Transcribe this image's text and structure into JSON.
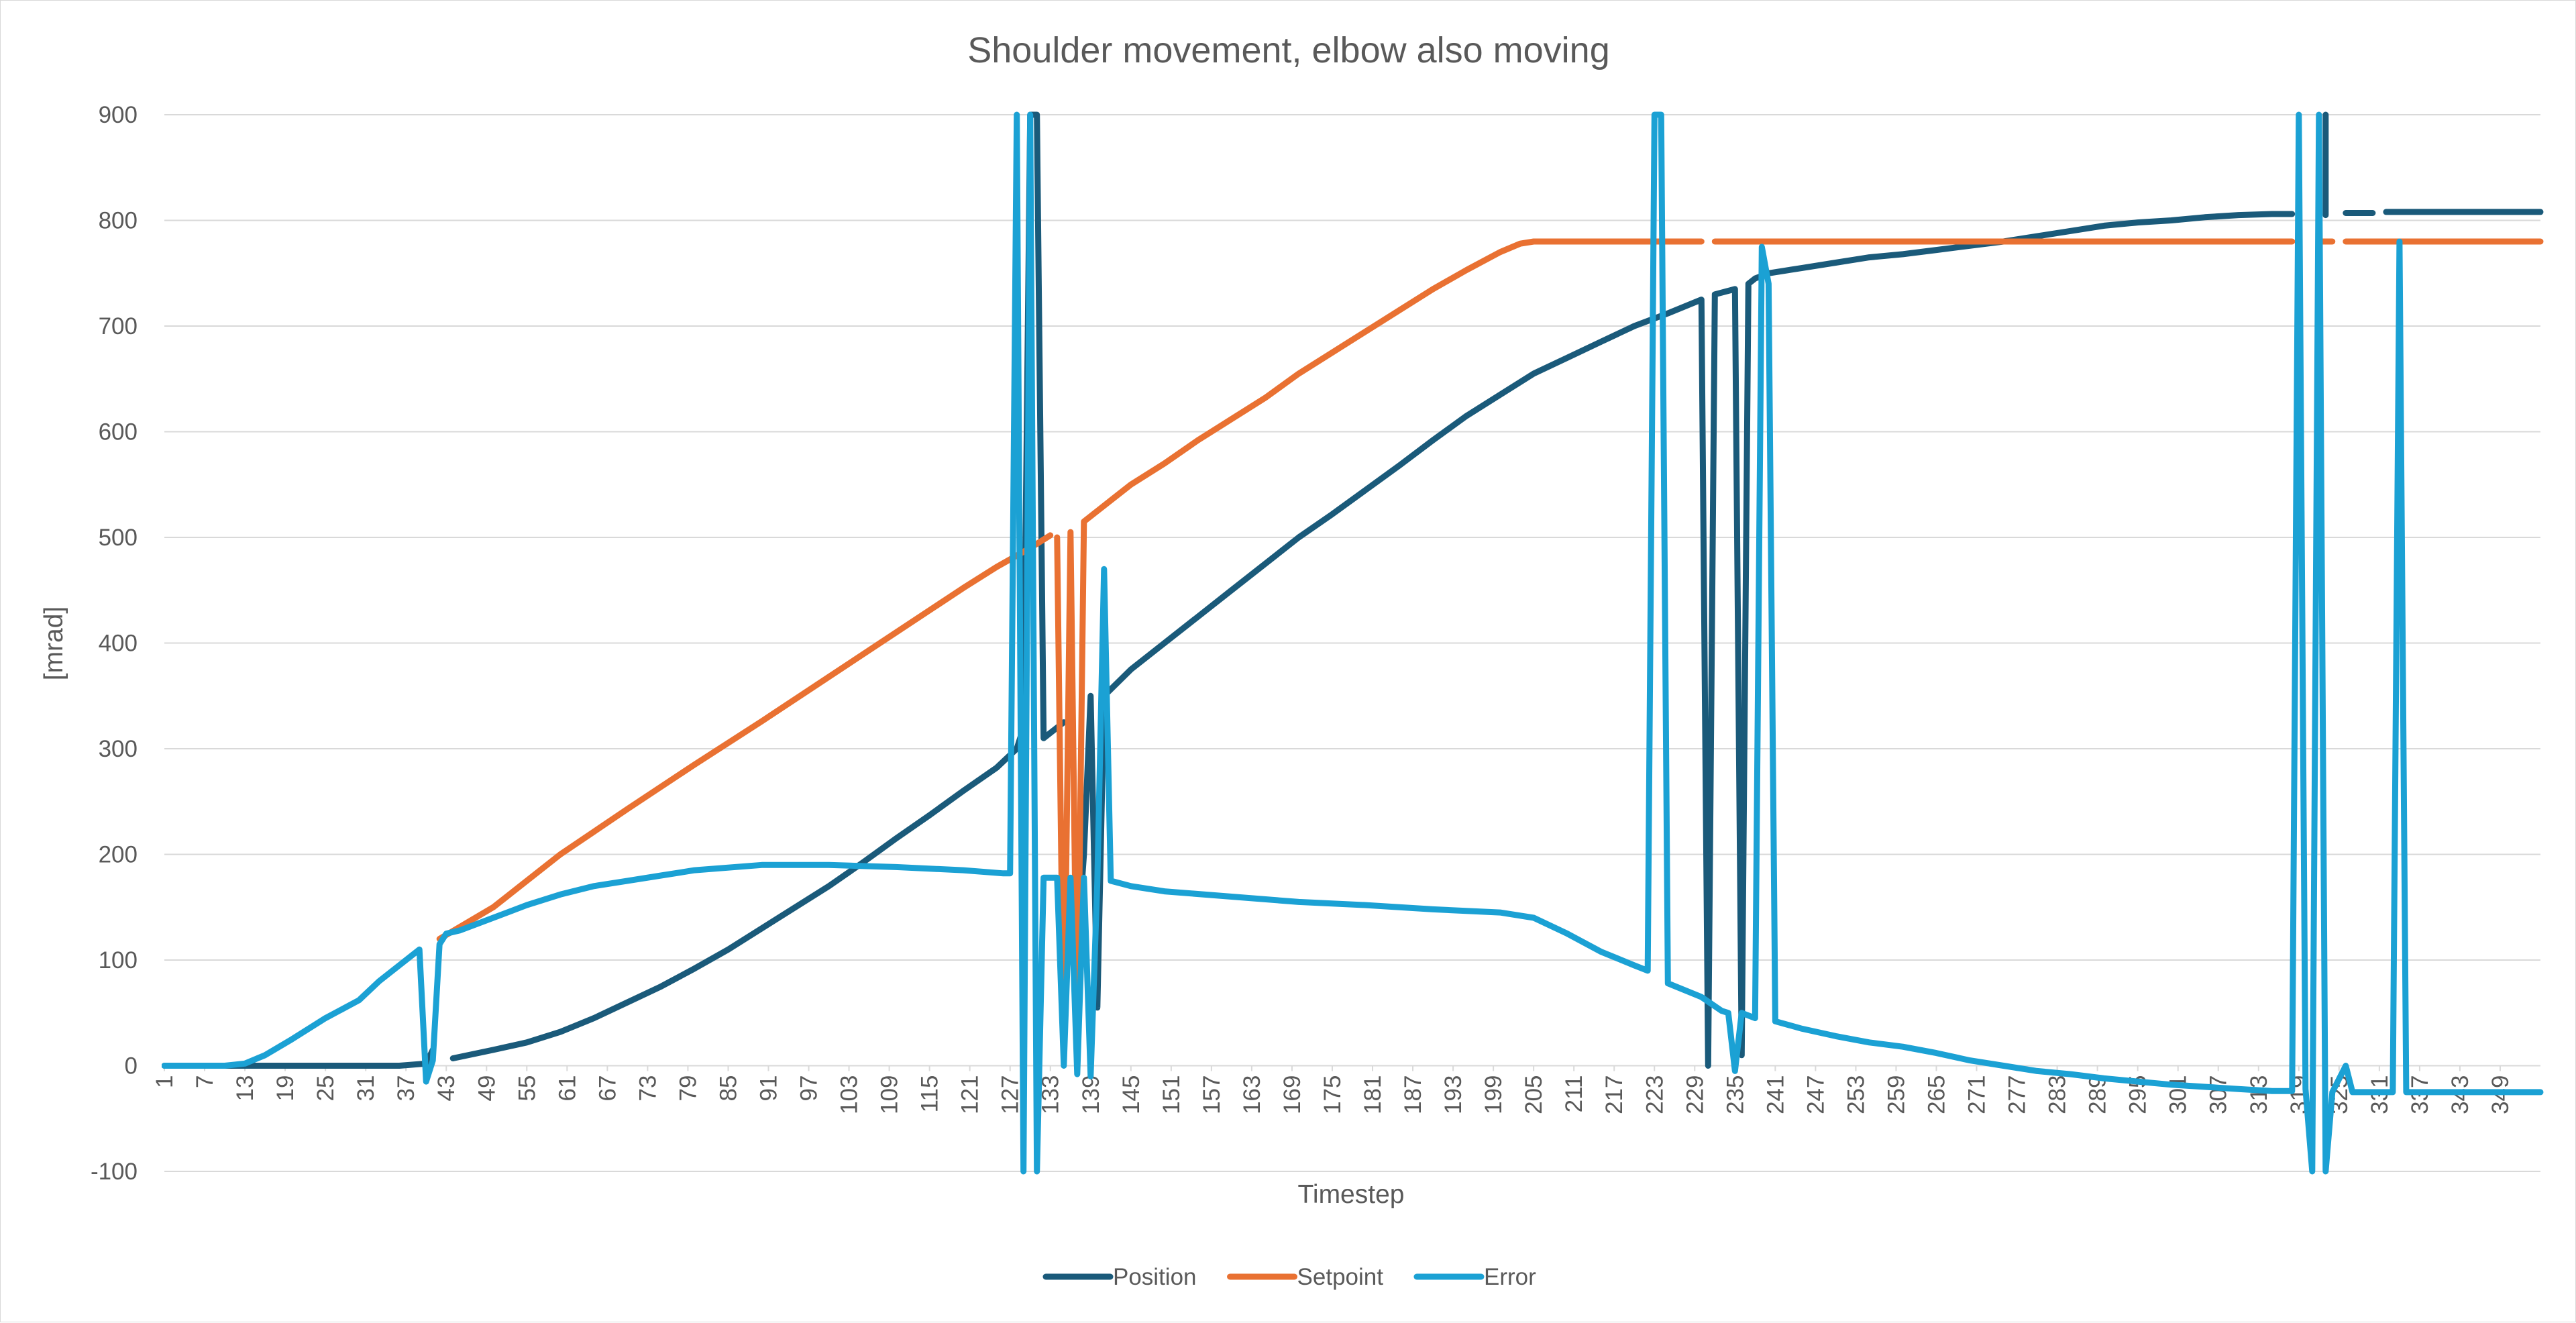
{
  "chart_data": {
    "type": "line",
    "title": "Shoulder movement, elbow also moving",
    "xlabel": "Timestep",
    "ylabel": "[mrad]",
    "ylim": [
      -100,
      900
    ],
    "yticks": [
      -100,
      0,
      100,
      200,
      300,
      400,
      500,
      600,
      700,
      800,
      900
    ],
    "x_range": [
      1,
      355
    ],
    "xticks": [
      1,
      7,
      13,
      19,
      25,
      31,
      37,
      43,
      49,
      55,
      61,
      67,
      73,
      79,
      85,
      91,
      97,
      103,
      109,
      115,
      121,
      127,
      133,
      139,
      145,
      151,
      157,
      163,
      169,
      175,
      181,
      187,
      193,
      199,
      205,
      211,
      217,
      223,
      229,
      235,
      241,
      247,
      253,
      259,
      265,
      271,
      277,
      283,
      289,
      295,
      301,
      307,
      313,
      319,
      325,
      331,
      337,
      343,
      349
    ],
    "grid": true,
    "legend_position": "bottom",
    "series": [
      {
        "name": "Position",
        "color": "#1a5a7a",
        "segments": [
          [
            [
              1,
              0
            ],
            [
              10,
              0
            ],
            [
              20,
              0
            ],
            [
              30,
              0
            ],
            [
              36,
              0
            ],
            [
              40,
              2
            ],
            [
              41,
              15
            ]
          ],
          [
            [
              44,
              7
            ],
            [
              50,
              15
            ],
            [
              55,
              22
            ],
            [
              60,
              32
            ],
            [
              65,
              45
            ],
            [
              70,
              60
            ],
            [
              75,
              75
            ],
            [
              80,
              92
            ],
            [
              85,
              110
            ],
            [
              90,
              130
            ],
            [
              95,
              150
            ],
            [
              100,
              170
            ],
            [
              105,
              192
            ],
            [
              110,
              215
            ],
            [
              115,
              237
            ],
            [
              120,
              260
            ],
            [
              125,
              282
            ],
            [
              128,
              300
            ],
            [
              129,
              320
            ],
            [
              130,
              900
            ],
            [
              131,
              900
            ],
            [
              132,
              310
            ],
            [
              135,
              325
            ]
          ],
          [
            [
              137,
              110
            ],
            [
              138,
              200
            ],
            [
              139,
              350
            ],
            [
              140,
              55
            ],
            [
              141,
              350
            ],
            [
              145,
              375
            ],
            [
              150,
              400
            ],
            [
              155,
              425
            ],
            [
              160,
              450
            ],
            [
              165,
              475
            ],
            [
              170,
              500
            ],
            [
              175,
              522
            ],
            [
              180,
              545
            ],
            [
              185,
              568
            ],
            [
              190,
              592
            ],
            [
              195,
              615
            ],
            [
              200,
              635
            ],
            [
              205,
              655
            ],
            [
              210,
              670
            ],
            [
              215,
              685
            ],
            [
              220,
              700
            ],
            [
              225,
              712
            ],
            [
              230,
              725
            ],
            [
              231,
              0
            ],
            [
              232,
              730
            ],
            [
              235,
              735
            ],
            [
              236,
              10
            ],
            [
              237,
              740
            ],
            [
              238,
              745
            ],
            [
              240,
              750
            ],
            [
              245,
              755
            ],
            [
              250,
              760
            ],
            [
              255,
              765
            ],
            [
              260,
              768
            ],
            [
              265,
              772
            ],
            [
              270,
              776
            ],
            [
              275,
              780
            ],
            [
              280,
              785
            ],
            [
              285,
              790
            ],
            [
              290,
              795
            ],
            [
              295,
              798
            ],
            [
              300,
              800
            ],
            [
              305,
              803
            ],
            [
              310,
              805
            ],
            [
              315,
              806
            ],
            [
              318,
              806
            ]
          ],
          [
            [
              323,
              900
            ],
            [
              323,
              805
            ]
          ],
          [
            [
              326,
              807
            ],
            [
              330,
              807
            ]
          ],
          [
            [
              332,
              808
            ],
            [
              340,
              808
            ],
            [
              349,
              808
            ],
            [
              355,
              808
            ]
          ]
        ]
      },
      {
        "name": "Setpoint",
        "color": "#e97132",
        "segments": [
          [
            [
              42,
              120
            ],
            [
              50,
              150
            ],
            [
              60,
              200
            ],
            [
              70,
              243
            ],
            [
              80,
              285
            ],
            [
              90,
              326
            ],
            [
              100,
              368
            ],
            [
              110,
              410
            ],
            [
              120,
              452
            ],
            [
              125,
              472
            ],
            [
              130,
              490
            ],
            [
              133,
              502
            ]
          ],
          [
            [
              134,
              500
            ],
            [
              135,
              10
            ],
            [
              136,
              505
            ],
            [
              137,
              12
            ],
            [
              138,
              515
            ],
            [
              139,
              520
            ],
            [
              140,
              525
            ],
            [
              145,
              550
            ],
            [
              150,
              570
            ],
            [
              155,
              592
            ],
            [
              160,
              612
            ],
            [
              165,
              632
            ],
            [
              170,
              655
            ],
            [
              175,
              675
            ],
            [
              180,
              695
            ],
            [
              185,
              715
            ],
            [
              190,
              735
            ],
            [
              195,
              753
            ],
            [
              200,
              770
            ],
            [
              203,
              778
            ],
            [
              205,
              780
            ],
            [
              210,
              780
            ],
            [
              220,
              780
            ],
            [
              230,
              780
            ]
          ],
          [
            [
              232,
              780
            ],
            [
              240,
              780
            ],
            [
              260,
              780
            ],
            [
              280,
              780
            ],
            [
              300,
              780
            ],
            [
              318,
              780
            ]
          ],
          [
            [
              322,
              780
            ],
            [
              324,
              780
            ]
          ],
          [
            [
              326,
              780
            ],
            [
              340,
              780
            ],
            [
              355,
              780
            ]
          ]
        ]
      },
      {
        "name": "Error",
        "color": "#1ba1d4",
        "segments": [
          [
            [
              1,
              0
            ],
            [
              10,
              0
            ],
            [
              13,
              2
            ],
            [
              16,
              10
            ],
            [
              20,
              25
            ],
            [
              25,
              45
            ],
            [
              30,
              62
            ],
            [
              33,
              80
            ],
            [
              36,
              95
            ],
            [
              38,
              105
            ],
            [
              39,
              110
            ],
            [
              40,
              -15
            ],
            [
              41,
              5
            ],
            [
              42,
              115
            ],
            [
              43,
              125
            ],
            [
              45,
              128
            ],
            [
              50,
              140
            ],
            [
              55,
              152
            ],
            [
              60,
              162
            ],
            [
              65,
              170
            ],
            [
              70,
              175
            ],
            [
              75,
              180
            ],
            [
              80,
              185
            ],
            [
              90,
              190
            ],
            [
              100,
              190
            ],
            [
              110,
              188
            ],
            [
              120,
              185
            ],
            [
              126,
              182
            ],
            [
              127,
              182
            ],
            [
              128,
              900
            ],
            [
              129,
              -100
            ],
            [
              130,
              900
            ],
            [
              131,
              -100
            ],
            [
              132,
              178
            ],
            [
              134,
              178
            ],
            [
              135,
              0
            ],
            [
              136,
              178
            ],
            [
              137,
              -8
            ],
            [
              138,
              178
            ],
            [
              139,
              -10
            ],
            [
              140,
              175
            ],
            [
              141,
              470
            ],
            [
              142,
              175
            ],
            [
              145,
              170
            ],
            [
              150,
              165
            ],
            [
              160,
              160
            ],
            [
              170,
              155
            ],
            [
              180,
              152
            ],
            [
              190,
              148
            ],
            [
              200,
              145
            ],
            [
              205,
              140
            ],
            [
              210,
              125
            ],
            [
              215,
              108
            ],
            [
              220,
              95
            ],
            [
              222,
              90
            ],
            [
              223,
              900
            ],
            [
              224,
              900
            ],
            [
              225,
              78
            ],
            [
              230,
              65
            ],
            [
              233,
              52
            ],
            [
              234,
              50
            ],
            [
              235,
              -5
            ],
            [
              236,
              50
            ],
            [
              238,
              45
            ],
            [
              239,
              775
            ],
            [
              240,
              740
            ],
            [
              241,
              42
            ],
            [
              245,
              35
            ],
            [
              250,
              28
            ],
            [
              255,
              22
            ],
            [
              260,
              18
            ],
            [
              265,
              12
            ],
            [
              270,
              5
            ],
            [
              275,
              0
            ],
            [
              280,
              -5
            ],
            [
              285,
              -8
            ],
            [
              290,
              -12
            ],
            [
              295,
              -15
            ],
            [
              300,
              -18
            ],
            [
              305,
              -20
            ],
            [
              310,
              -22
            ],
            [
              315,
              -24
            ],
            [
              318,
              -24
            ],
            [
              319,
              900
            ],
            [
              320,
              -22
            ],
            [
              321,
              -100
            ],
            [
              322,
              900
            ],
            [
              323,
              -100
            ],
            [
              324,
              -25
            ],
            [
              326,
              0
            ],
            [
              327,
              -25
            ],
            [
              330,
              -25
            ],
            [
              333,
              -25
            ],
            [
              334,
              780
            ],
            [
              335,
              -25
            ],
            [
              340,
              -25
            ],
            [
              349,
              -25
            ],
            [
              355,
              -25
            ]
          ]
        ]
      }
    ]
  }
}
